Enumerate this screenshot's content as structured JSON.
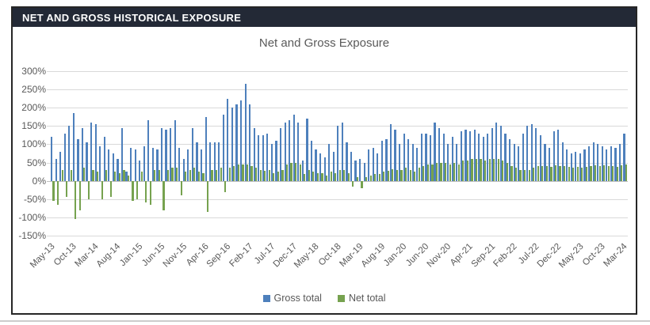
{
  "panel": {
    "header_title": "NET AND GROSS HISTORICAL EXPOSURE"
  },
  "colors": {
    "header_bg": "#232936",
    "gross_blue": "#4e80bc",
    "net_green": "#76a24f",
    "gridline": "#d9d9d9",
    "text_gray": "#595959"
  },
  "chart_data": {
    "type": "bar",
    "title": "Net and Gross Exposure",
    "xlabel": "",
    "ylabel": "",
    "ylim": [
      -150,
      300
    ],
    "ytick_step": 50,
    "ytick_suffix": "%",
    "x_tick_every": 5,
    "grid": true,
    "legend_position": "bottom",
    "categories": [
      "May-13",
      "Jun-13",
      "Jul-13",
      "Aug-13",
      "Sep-13",
      "Oct-13",
      "Nov-13",
      "Dec-13",
      "Jan-14",
      "Feb-14",
      "Mar-14",
      "Apr-14",
      "May-14",
      "Jun-14",
      "Jul-14",
      "Aug-14",
      "Sep-14",
      "Oct-14",
      "Nov-14",
      "Dec-14",
      "Jan-15",
      "Feb-15",
      "Mar-15",
      "Apr-15",
      "May-15",
      "Jun-15",
      "Jul-15",
      "Aug-15",
      "Sep-15",
      "Oct-15",
      "Nov-15",
      "Dec-15",
      "Jan-16",
      "Feb-16",
      "Mar-16",
      "Apr-16",
      "May-16",
      "Jun-16",
      "Jul-16",
      "Aug-16",
      "Sep-16",
      "Oct-16",
      "Nov-16",
      "Dec-16",
      "Jan-17",
      "Feb-17",
      "Mar-17",
      "Apr-17",
      "May-17",
      "Jun-17",
      "Jul-17",
      "Aug-17",
      "Sep-17",
      "Oct-17",
      "Nov-17",
      "Dec-17",
      "Jan-18",
      "Feb-18",
      "Mar-18",
      "Apr-18",
      "May-18",
      "Jun-18",
      "Jul-18",
      "Aug-18",
      "Sep-18",
      "Oct-18",
      "Nov-18",
      "Dec-18",
      "Jan-19",
      "Feb-19",
      "Mar-19",
      "Apr-19",
      "May-19",
      "Jun-19",
      "Jul-19",
      "Aug-19",
      "Sep-19",
      "Oct-19",
      "Nov-19",
      "Dec-19",
      "Jan-20",
      "Feb-20",
      "Mar-20",
      "Apr-20",
      "May-20",
      "Jun-20",
      "Jul-20",
      "Aug-20",
      "Sep-20",
      "Oct-20",
      "Nov-20",
      "Dec-20",
      "Jan-21",
      "Feb-21",
      "Mar-21",
      "Apr-21",
      "May-21",
      "Jun-21",
      "Jul-21",
      "Aug-21",
      "Sep-21",
      "Oct-21",
      "Nov-21",
      "Dec-21",
      "Jan-22",
      "Feb-22",
      "Mar-22",
      "Apr-22",
      "May-22",
      "Jun-22",
      "Jul-22",
      "Aug-22",
      "Sep-22",
      "Oct-22",
      "Nov-22",
      "Dec-22",
      "Jan-23",
      "Feb-23",
      "Mar-23",
      "Apr-23",
      "May-23",
      "Jun-23",
      "Jul-23",
      "Aug-23",
      "Sep-23",
      "Oct-23",
      "Nov-23",
      "Dec-23",
      "Jan-24",
      "Feb-24",
      "Mar-24"
    ],
    "series": [
      {
        "name": "Gross total",
        "color": "#4e80bc",
        "values": [
          120,
          60,
          80,
          130,
          150,
          185,
          115,
          145,
          105,
          160,
          155,
          95,
          120,
          85,
          75,
          60,
          145,
          25,
          90,
          85,
          55,
          95,
          165,
          90,
          85,
          145,
          140,
          145,
          165,
          90,
          60,
          85,
          145,
          105,
          85,
          175,
          105,
          105,
          105,
          180,
          225,
          200,
          210,
          220,
          265,
          210,
          145,
          125,
          125,
          130,
          100,
          110,
          145,
          160,
          165,
          180,
          160,
          55,
          170,
          110,
          85,
          75,
          65,
          100,
          80,
          150,
          160,
          105,
          80,
          55,
          60,
          50,
          85,
          90,
          75,
          110,
          115,
          155,
          140,
          100,
          130,
          115,
          100,
          90,
          130,
          130,
          125,
          160,
          145,
          130,
          100,
          120,
          100,
          135,
          140,
          135,
          140,
          130,
          120,
          130,
          145,
          160,
          150,
          130,
          115,
          100,
          95,
          130,
          150,
          155,
          145,
          125,
          100,
          90,
          135,
          140,
          105,
          85,
          75,
          80,
          75,
          85,
          95,
          105,
          100,
          95,
          85,
          95,
          90,
          100,
          130
        ]
      },
      {
        "name": "Net total",
        "color": "#76a24f",
        "values": [
          -55,
          -65,
          30,
          -45,
          30,
          -105,
          -80,
          35,
          -50,
          30,
          25,
          -50,
          30,
          -45,
          25,
          20,
          30,
          15,
          -55,
          -50,
          25,
          -60,
          -65,
          30,
          30,
          -80,
          30,
          35,
          35,
          -40,
          25,
          30,
          35,
          25,
          20,
          -85,
          30,
          30,
          35,
          -30,
          35,
          40,
          45,
          45,
          45,
          40,
          35,
          30,
          28,
          30,
          22,
          25,
          30,
          45,
          50,
          50,
          45,
          18,
          30,
          25,
          20,
          20,
          15,
          25,
          20,
          30,
          30,
          20,
          -15,
          10,
          -20,
          10,
          15,
          18,
          18,
          25,
          28,
          32,
          30,
          30,
          35,
          30,
          25,
          35,
          40,
          45,
          45,
          50,
          50,
          48,
          45,
          50,
          45,
          55,
          55,
          60,
          60,
          60,
          55,
          60,
          60,
          60,
          55,
          50,
          40,
          35,
          30,
          30,
          30,
          35,
          40,
          40,
          40,
          38,
          42,
          40,
          40,
          38,
          35,
          38,
          35,
          38,
          40,
          42,
          40,
          42,
          40,
          40,
          38,
          42,
          45
        ]
      }
    ]
  }
}
